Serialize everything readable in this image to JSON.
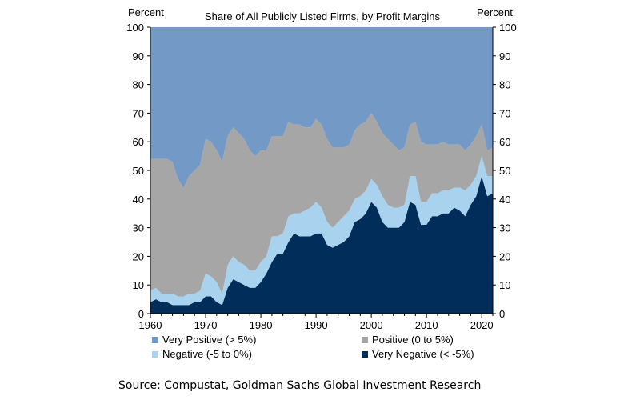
{
  "chart_data": {
    "type": "area",
    "stacked": true,
    "title": "Share of All Publicly Listed Firms, by Profit Margins",
    "y_unit_left": "Percent",
    "y_unit_right": "Percent",
    "xlim": [
      1960,
      2022
    ],
    "ylim": [
      0,
      100
    ],
    "x_ticks": [
      1960,
      1970,
      1980,
      1990,
      2000,
      2010,
      2020
    ],
    "y_ticks": [
      0,
      10,
      20,
      30,
      40,
      50,
      60,
      70,
      80,
      90,
      100
    ],
    "legend_position": "bottom",
    "grid": false,
    "x": [
      1960,
      1961,
      1962,
      1963,
      1964,
      1965,
      1966,
      1967,
      1968,
      1969,
      1970,
      1971,
      1972,
      1973,
      1974,
      1975,
      1976,
      1977,
      1978,
      1979,
      1980,
      1981,
      1982,
      1983,
      1984,
      1985,
      1986,
      1987,
      1988,
      1989,
      1990,
      1991,
      1992,
      1993,
      1994,
      1995,
      1996,
      1997,
      1998,
      1999,
      2000,
      2001,
      2002,
      2003,
      2004,
      2005,
      2006,
      2007,
      2008,
      2009,
      2010,
      2011,
      2012,
      2013,
      2014,
      2015,
      2016,
      2017,
      2018,
      2019,
      2020,
      2021,
      2022
    ],
    "series": [
      {
        "name": "Very Negative (< -5%)",
        "color": "#002d5a",
        "values": [
          4,
          5,
          4,
          4,
          3,
          3,
          3,
          3,
          4,
          4,
          6,
          6,
          4,
          3,
          9,
          12,
          11,
          10,
          9,
          9,
          11,
          14,
          18,
          21,
          21,
          25,
          28,
          27,
          27,
          27,
          28,
          28,
          24,
          23,
          24,
          25,
          27,
          32,
          33,
          35,
          39,
          37,
          32,
          30,
          30,
          30,
          32,
          39,
          38,
          31,
          31,
          34,
          34,
          35,
          35,
          37,
          36,
          34,
          38,
          41,
          48,
          41,
          42
        ]
      },
      {
        "name": "Negative (-5 to 0%)",
        "color": "#a8d2ee",
        "values": [
          4,
          4,
          3,
          3,
          4,
          3,
          3,
          4,
          3,
          4,
          8,
          7,
          7,
          4,
          8,
          8,
          7,
          7,
          6,
          6,
          7,
          6,
          9,
          6,
          7,
          9,
          7,
          8,
          9,
          10,
          11,
          9,
          8,
          7,
          8,
          9,
          9,
          8,
          8,
          8,
          8,
          8,
          9,
          8,
          7,
          7,
          6,
          9,
          10,
          8,
          8,
          8,
          8,
          8,
          8,
          7,
          8,
          9,
          7,
          7,
          7,
          7,
          6
        ]
      },
      {
        "name": "Positive (0 to 5%)",
        "color": "#a6a6a6",
        "values": [
          46,
          45,
          47,
          47,
          46,
          41,
          38,
          41,
          43,
          44,
          47,
          47,
          46,
          46,
          45,
          45,
          45,
          44,
          42,
          40,
          39,
          37,
          35,
          35,
          34,
          33,
          31,
          31,
          29,
          28,
          29,
          29,
          29,
          28,
          26,
          24,
          23,
          24,
          25,
          24,
          23,
          22,
          22,
          23,
          22,
          20,
          20,
          18,
          19,
          21,
          20,
          17,
          17,
          17,
          16,
          15,
          15,
          14,
          14,
          14,
          11,
          9,
          10
        ]
      },
      {
        "name": "Very Positive (> 5%)",
        "color": "#7399c6",
        "values": [
          46,
          46,
          46,
          46,
          47,
          53,
          56,
          52,
          50,
          48,
          39,
          40,
          43,
          47,
          38,
          35,
          37,
          39,
          43,
          45,
          43,
          43,
          38,
          38,
          38,
          33,
          34,
          34,
          35,
          35,
          32,
          34,
          39,
          42,
          42,
          42,
          41,
          36,
          34,
          33,
          30,
          33,
          37,
          39,
          41,
          43,
          42,
          34,
          33,
          40,
          41,
          41,
          41,
          40,
          41,
          41,
          41,
          43,
          41,
          38,
          34,
          43,
          42
        ]
      }
    ],
    "legend": {
      "items": [
        {
          "label": "Very Positive (> 5%)",
          "color": "#7399c6"
        },
        {
          "label": "Positive (0 to 5%)",
          "color": "#a6a6a6"
        },
        {
          "label": "Negative (-5 to 0%)",
          "color": "#a8d2ee"
        },
        {
          "label": "Very Negative (< -5%)",
          "color": "#002d5a"
        }
      ]
    }
  },
  "source": "Source: Compustat, Goldman Sachs Global Investment Research"
}
